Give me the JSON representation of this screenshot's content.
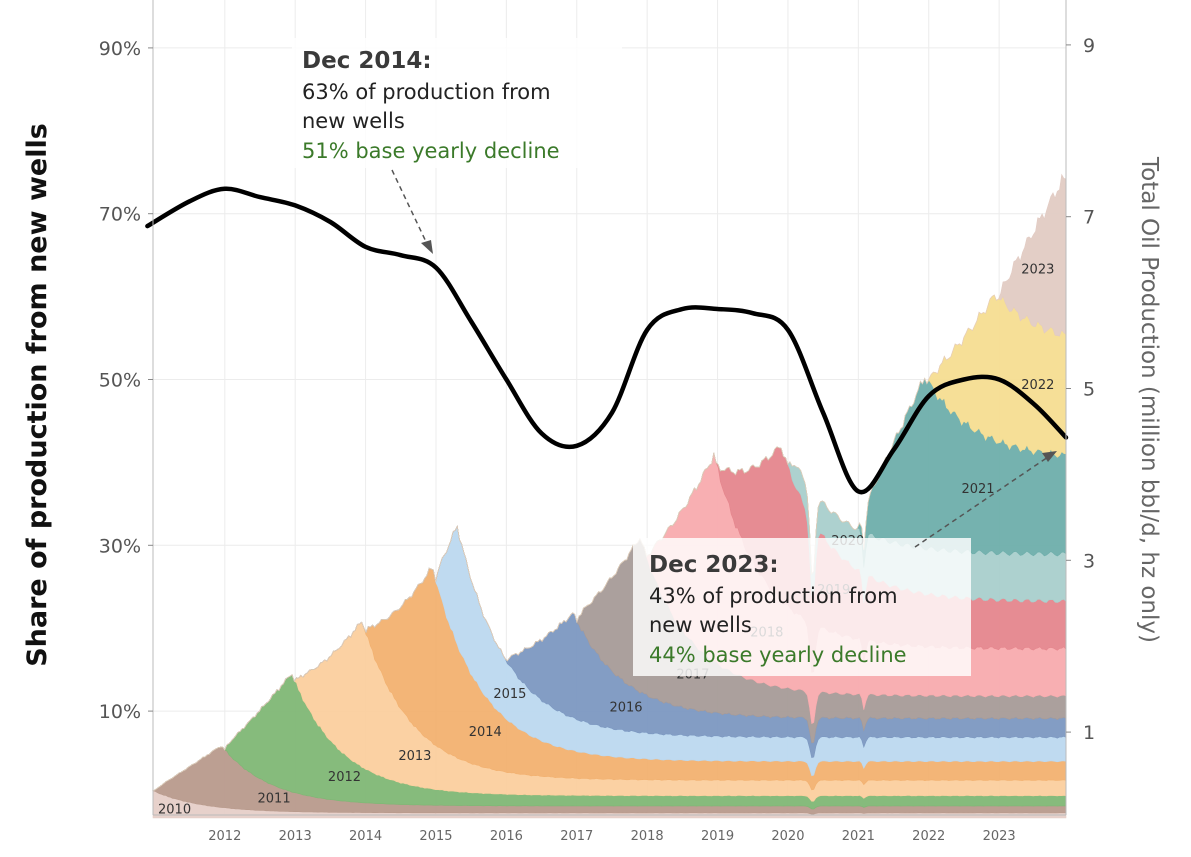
{
  "chart_data": {
    "type": "area",
    "ylabel": "Share of production from new wells",
    "y2label": "Total Oil Production (million bbl/d, hz only)",
    "x_ticks": [
      "2012",
      "2013",
      "2014",
      "2015",
      "2016",
      "2017",
      "2018",
      "2019",
      "2020",
      "2021",
      "2022",
      "2023"
    ],
    "y_ticks": [
      "10%",
      "30%",
      "50%",
      "70%",
      "90%"
    ],
    "y2_ticks": [
      "1",
      "3",
      "5",
      "7",
      "9"
    ],
    "y2lim": [
      0,
      9.6
    ],
    "grid": true,
    "series": [
      {
        "name": "2010",
        "color": "#e6cfc8",
        "start": 2010.9,
        "peak_date": 2010.9,
        "peak": 0.35,
        "tail": 0.06
      },
      {
        "name": "2011",
        "color": "#b89a8c",
        "start": 2011.0,
        "peak_date": 2011.95,
        "peak": 0.72,
        "tail": 0.08
      },
      {
        "name": "2012",
        "color": "#7fb775",
        "start": 2012.0,
        "peak_date": 2012.95,
        "peak": 1.38,
        "tail": 0.12
      },
      {
        "name": "2013",
        "color": "#fbcf9e",
        "start": 2013.0,
        "peak_date": 2013.95,
        "peak": 1.7,
        "tail": 0.18
      },
      {
        "name": "2014",
        "color": "#f2b170",
        "start": 2014.0,
        "peak_date": 2014.95,
        "peak": 2.05,
        "tail": 0.22
      },
      {
        "name": "2015",
        "color": "#bcd8ef",
        "start": 2015.0,
        "peak_date": 2015.3,
        "peak": 1.38,
        "tail": 0.28
      },
      {
        "name": "2016",
        "color": "#7c98c1",
        "start": 2016.0,
        "peak_date": 2016.95,
        "peak": 1.22,
        "tail": 0.22
      },
      {
        "name": "2017",
        "color": "#a79b98",
        "start": 2017.0,
        "peak_date": 2017.9,
        "peak": 1.8,
        "tail": 0.26
      },
      {
        "name": "2018",
        "color": "#f8abae",
        "start": 2018.0,
        "peak_date": 2018.95,
        "peak": 2.4,
        "tail": 0.55
      },
      {
        "name": "2019",
        "color": "#e5868d",
        "start": 2019.0,
        "peak_date": 2019.9,
        "peak": 1.8,
        "tail": 0.55
      },
      {
        "name": "2020",
        "color": "#a9cfcc",
        "start": 2020.0,
        "peak_date": 2020.1,
        "peak": 0.25,
        "tail": 0.55
      },
      {
        "name": "2021",
        "color": "#6eaeab",
        "start": 2021.0,
        "peak_date": 2021.95,
        "peak": 2.0,
        "tail": 1.1
      },
      {
        "name": "2022",
        "color": "#f6dd91",
        "start": 2022.0,
        "peak_date": 2022.95,
        "peak": 1.7,
        "tail": 1.3
      },
      {
        "name": "2023",
        "color": "#e2cbc3",
        "start": 2023.0,
        "peak_date": 2023.9,
        "peak": 1.8,
        "tail": 1.8
      }
    ],
    "share_line": {
      "color": "#000000",
      "x": [
        2010.9,
        2011.5,
        2012.0,
        2012.5,
        2013.0,
        2013.5,
        2014.0,
        2014.5,
        2015.0,
        2015.5,
        2016.0,
        2016.5,
        2017.0,
        2017.5,
        2018.0,
        2018.5,
        2019.0,
        2019.5,
        2020.0,
        2020.5,
        2021.0,
        2021.5,
        2022.0,
        2022.5,
        2023.0,
        2023.5,
        2023.95
      ],
      "y": [
        68.5,
        71.5,
        73,
        72,
        71,
        69,
        66,
        65,
        63.5,
        57,
        50,
        43.5,
        42,
        46,
        56,
        58.5,
        58.5,
        58,
        56,
        46,
        36.5,
        41.5,
        48,
        50,
        50,
        47,
        43
      ]
    },
    "annotations": [
      {
        "title": "Dec 2014:",
        "line1": "63% of production from",
        "line2": "new wells",
        "line3": "51% base yearly decline"
      },
      {
        "title": "Dec 2023:",
        "line1": "43% of production from",
        "line2": "new wells",
        "line3": "44% base yearly decline"
      }
    ]
  }
}
